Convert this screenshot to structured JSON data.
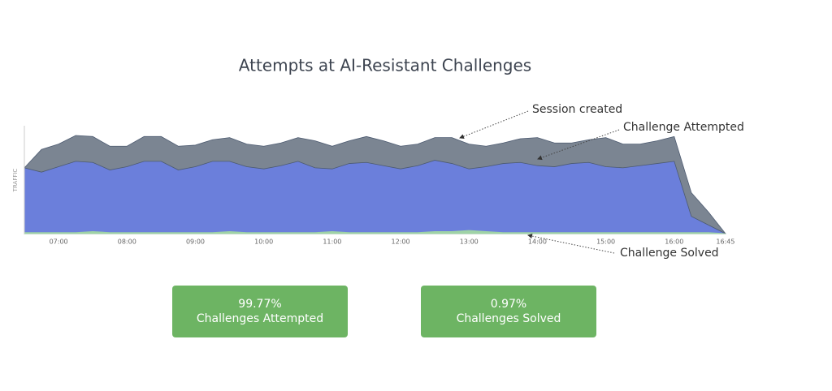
{
  "chart_data": {
    "type": "area",
    "title": "Attempts at AI-Resistant Challenges",
    "ylabel": "TRAFFIC",
    "x": [
      "06:30",
      "06:45",
      "07:00",
      "07:15",
      "07:30",
      "07:45",
      "08:00",
      "08:15",
      "08:30",
      "08:45",
      "09:00",
      "09:15",
      "09:30",
      "09:45",
      "10:00",
      "10:15",
      "10:30",
      "10:45",
      "11:00",
      "11:15",
      "11:30",
      "11:45",
      "12:00",
      "12:15",
      "12:30",
      "12:45",
      "13:00",
      "13:15",
      "13:30",
      "13:45",
      "14:00",
      "14:15",
      "14:30",
      "14:45",
      "15:00",
      "15:15",
      "15:30",
      "15:45",
      "16:00",
      "16:15",
      "16:30",
      "16:45"
    ],
    "series": [
      {
        "name": "Session created",
        "color": "#7b8592",
        "values": [
          61,
          78,
          83,
          91,
          90,
          81,
          81,
          90,
          90,
          81,
          82,
          87,
          89,
          83,
          81,
          84,
          89,
          86,
          81,
          86,
          90,
          86,
          81,
          83,
          89,
          89,
          83,
          81,
          84,
          88,
          89,
          84,
          84,
          87,
          89,
          83,
          83,
          86,
          90,
          38,
          20,
          0
        ]
      },
      {
        "name": "Challenge Attempted",
        "color": "#6b7fdb",
        "values": [
          61,
          57,
          62,
          67,
          66,
          59,
          62,
          67,
          67,
          59,
          62,
          67,
          67,
          62,
          60,
          63,
          67,
          61,
          60,
          65,
          66,
          63,
          60,
          63,
          68,
          65,
          60,
          62,
          65,
          66,
          63,
          62,
          65,
          66,
          62,
          61,
          63,
          65,
          67,
          16,
          8,
          0
        ]
      },
      {
        "name": "Challenge Solved",
        "color": "#9fd3a6",
        "values": [
          1,
          1,
          1,
          1,
          2,
          1,
          1,
          1,
          1,
          1,
          1,
          1,
          2,
          1,
          1,
          1,
          1,
          1,
          2,
          1,
          1,
          1,
          1,
          1,
          2,
          2,
          3,
          2,
          1,
          1,
          1,
          1,
          1,
          1,
          1,
          1,
          1,
          1,
          1,
          1,
          1,
          0
        ]
      }
    ],
    "xlim": [
      "06:30",
      "17:00"
    ],
    "ylim": [
      0,
      100
    ],
    "xticks": [
      "07:00",
      "08:00",
      "09:00",
      "10:00",
      "11:00",
      "12:00",
      "13:00",
      "14:00",
      "15:00",
      "16:00",
      "16:45"
    ]
  },
  "stats": [
    {
      "value": "99.77%",
      "label": "Challenges Attempted"
    },
    {
      "value": "0.97%",
      "label": "Challenges Solved"
    }
  ]
}
